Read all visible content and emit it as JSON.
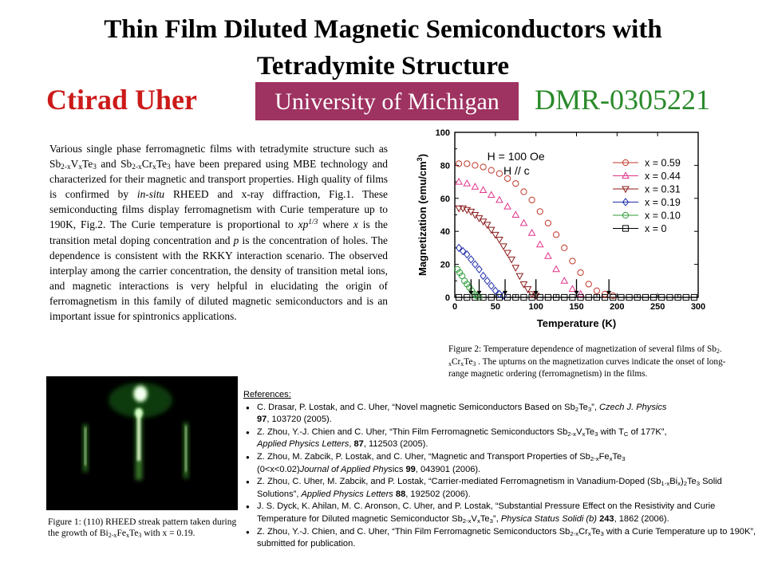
{
  "slide": {
    "title_line1": "Thin Film Diluted Magnetic Semiconductors with",
    "title_line2": "Tetradymite Structure",
    "author": "Ctirad Uher",
    "institution": "University of Michigan",
    "grant": "DMR-0305221"
  },
  "body": {
    "t1": "Various single phase ferromagnetic films with tetradymite structure such as Sb",
    "s1": "2-x",
    "t2": "V",
    "s2": "x",
    "t3": "Te",
    "s3": "3",
    "t4": " and Sb",
    "s4": "2-x",
    "t5": "Cr",
    "s5": "x",
    "t6": "Te",
    "s6": "3",
    "t7": " have been prepared using MBE technology and characterized for their magnetic and transport properties. High quality of films is confirmed by ",
    "i1": "in-situ",
    "t8": " RHEED and x-ray diffraction, Fig.1. These semiconducting films display ferromagnetism with Curie temperature up to 190K, Fig.2. The Curie temperature is proportional to ",
    "i2": "xp",
    "sup1": "1/3",
    "t9": " where ",
    "i3": "x",
    "t10": " is the transition metal doping concentration and ",
    "i4": "p",
    "t11": " is the concentration of holes. The dependence is consistent with the RKKY interaction scenario. The observed interplay among the carrier concentration, the density of transition metal ions, and magnetic interactions is very helpful in elucidating the origin of ferromagnetism in this family of diluted magnetic semiconductors and is an important issue for spintronics applications."
  },
  "figure1": {
    "t1": "Figure 1: (110) RHEED streak pattern taken during the growth of Bi",
    "s1": "2-x",
    "t2": "Fe",
    "s2": "x",
    "t3": "Te",
    "s3": "3",
    "t4": " with x = 0.19."
  },
  "figure2": {
    "t1": "Figure 2: Temperature dependence of magnetization of several films of Sb",
    "s1": "2-x",
    "t2": "Cr",
    "s2": "x",
    "t3": "Te",
    "s3": "3",
    "t4": " . The upturns on the magnetization curves indicate the onset of long-range magnetic ordering (ferromagnetism) in the films."
  },
  "references": {
    "heading": "References:",
    "r1": {
      "a": "C. Drasar, P. Lostak, and C. Uher, “Novel magnetic Semiconductors Based on Sb",
      "b": "2",
      "c": "Te",
      "d": "3",
      "e": "”, ",
      "f": "Czech J. Physics",
      "g": "97",
      "h": ", 103720 (2005)."
    },
    "r2": {
      "a": "Z. Zhou, Y.-J. Chien and C. Uher, “Thin Film Ferromagnetic Semiconductors Sb",
      "b": "2-x",
      "c": "V",
      "d": "x",
      "e": "Te",
      "f": "3",
      "g": " with T",
      "h": "C",
      "i": " of 177K”, ",
      "j": "Applied Physics Letters",
      "k": ", ",
      "l": "87",
      "m": ", 112503 (2005)."
    },
    "r3": {
      "a": "Z. Zhou, M. Zabcik, P. Lostak, and C. Uher, “Magnetic and Transport Properties of Sb",
      "b": "2-x",
      "c": "Fe",
      "d": "x",
      "e": "Te",
      "f": "3",
      "g": " (0<x<0.02)",
      "h": "Journal of Applied Phys",
      "i": "ics ",
      "j": "99",
      "k": ", 043901 (2006)."
    },
    "r4": {
      "a": "Z. Zhou, C. Uher, M. Zabcik, and P. Lostak, “Carrier-mediated Ferromagnetism in Vanadium-Doped (Sb",
      "b": "1-x",
      "c": "Bi",
      "d": "x",
      "e": ")",
      "f": "2",
      "g": "Te",
      "h": "3",
      "i": " Solid Solutions”, ",
      "j": "Applied Physics Letters",
      "k": " ",
      "l": "88",
      "m": ", 192502 (2006)."
    },
    "r5": {
      "a": "J. S. Dyck, K. Ahilan, M. C. Aronson, C. Uher, and P. Lostak, “Substantial Pressure Effect on the Resistivity and Curie Temperature for Diluted magnetic Semiconductor Sb",
      "b": "2-x",
      "c": "V",
      "d": "x",
      "e": "Te",
      "f": "3",
      "g": "”, ",
      "h": "Physica Status Solidi (b)",
      "i": " ",
      "j": "243",
      "k": ", 1862 (2006)."
    },
    "r6": {
      "a": "Z. Zhou, Y.-J. Chien, and C. Uher, “Thin Film Ferromagnetic Semiconductors Sb",
      "b": "2-x",
      "c": "Cr",
      "d": "x",
      "e": "Te",
      "f": "3",
      "g": " with a Curie Temperature up to 190K”, submitted for publication."
    }
  },
  "chart_data": {
    "type": "scatter",
    "xlabel": "Temperature (K)",
    "ylabel": "Magnetization (emu/cm",
    "ylabel_sup": "3",
    "ylabel_close": ")",
    "xlim": [
      0,
      300
    ],
    "ylim": [
      0,
      100
    ],
    "xticks": [
      "0",
      "50",
      "100",
      "150",
      "200",
      "250",
      "300"
    ],
    "yticks": [
      "0",
      "20",
      "40",
      "60",
      "80",
      "100"
    ],
    "annotation_line1": "H = 100 Oe",
    "annotation_line2": "H // c",
    "legend_position": "right",
    "arrow_temperatures": [
      20,
      30,
      62,
      100,
      150,
      190
    ],
    "series": [
      {
        "name": "x = 0.59",
        "marker": "circle",
        "color": "#c0392b",
        "x": [
          5,
          15,
          25,
          35,
          45,
          55,
          65,
          75,
          85,
          95,
          105,
          115,
          125,
          135,
          145,
          155,
          165,
          175,
          185,
          195
        ],
        "y": [
          81,
          81,
          80,
          79,
          77,
          75,
          72,
          69,
          64,
          59,
          52,
          45,
          38,
          30,
          22,
          15,
          8,
          4,
          2,
          1
        ]
      },
      {
        "name": "x = 0.44",
        "marker": "triangle-up",
        "color": "#e0348a",
        "x": [
          5,
          15,
          25,
          35,
          45,
          55,
          65,
          75,
          85,
          95,
          105,
          115,
          125,
          135,
          145,
          155
        ],
        "y": [
          70,
          69,
          67,
          65,
          62,
          59,
          55,
          50,
          45,
          39,
          32,
          25,
          17,
          10,
          5,
          2
        ]
      },
      {
        "name": "x = 0.31",
        "marker": "triangle-down",
        "color": "#8b1a1a",
        "x": [
          5,
          10,
          15,
          20,
          25,
          30,
          35,
          40,
          45,
          50,
          55,
          60,
          65,
          70,
          75,
          80,
          85,
          90,
          95,
          100
        ],
        "y": [
          54,
          54,
          53,
          52,
          50,
          48,
          46,
          44,
          41,
          38,
          35,
          31,
          27,
          23,
          18,
          13,
          8,
          5,
          2,
          1
        ]
      },
      {
        "name": "x = 0.19",
        "marker": "diamond",
        "color": "#1f2fa8",
        "x": [
          5,
          10,
          15,
          20,
          25,
          30,
          35,
          40,
          45,
          50,
          55,
          60
        ],
        "y": [
          30,
          28,
          26,
          23,
          20,
          17,
          13,
          10,
          7,
          4,
          2,
          1
        ]
      },
      {
        "name": "x = 0.10",
        "marker": "circle",
        "color": "#2e9e3a",
        "x": [
          3,
          6,
          9,
          12,
          15,
          18,
          21,
          24,
          27,
          30
        ],
        "y": [
          17,
          15,
          13,
          10,
          8,
          6,
          4,
          2,
          1,
          0
        ]
      },
      {
        "name": "x = 0",
        "marker": "square",
        "color": "#000000",
        "x": [
          5,
          15,
          25,
          35,
          45,
          55,
          65,
          75,
          85,
          95,
          105,
          115,
          125,
          135,
          145,
          155,
          165,
          175,
          185,
          195,
          205,
          215,
          225,
          235,
          245,
          255,
          265,
          275,
          285,
          295
        ],
        "y": [
          0,
          0,
          0,
          0,
          0,
          0,
          0,
          0,
          0,
          0,
          0,
          0,
          0,
          0,
          0,
          0,
          0,
          0,
          0,
          0,
          0,
          0,
          0,
          0,
          0,
          0,
          0,
          0,
          0,
          0
        ]
      }
    ]
  }
}
